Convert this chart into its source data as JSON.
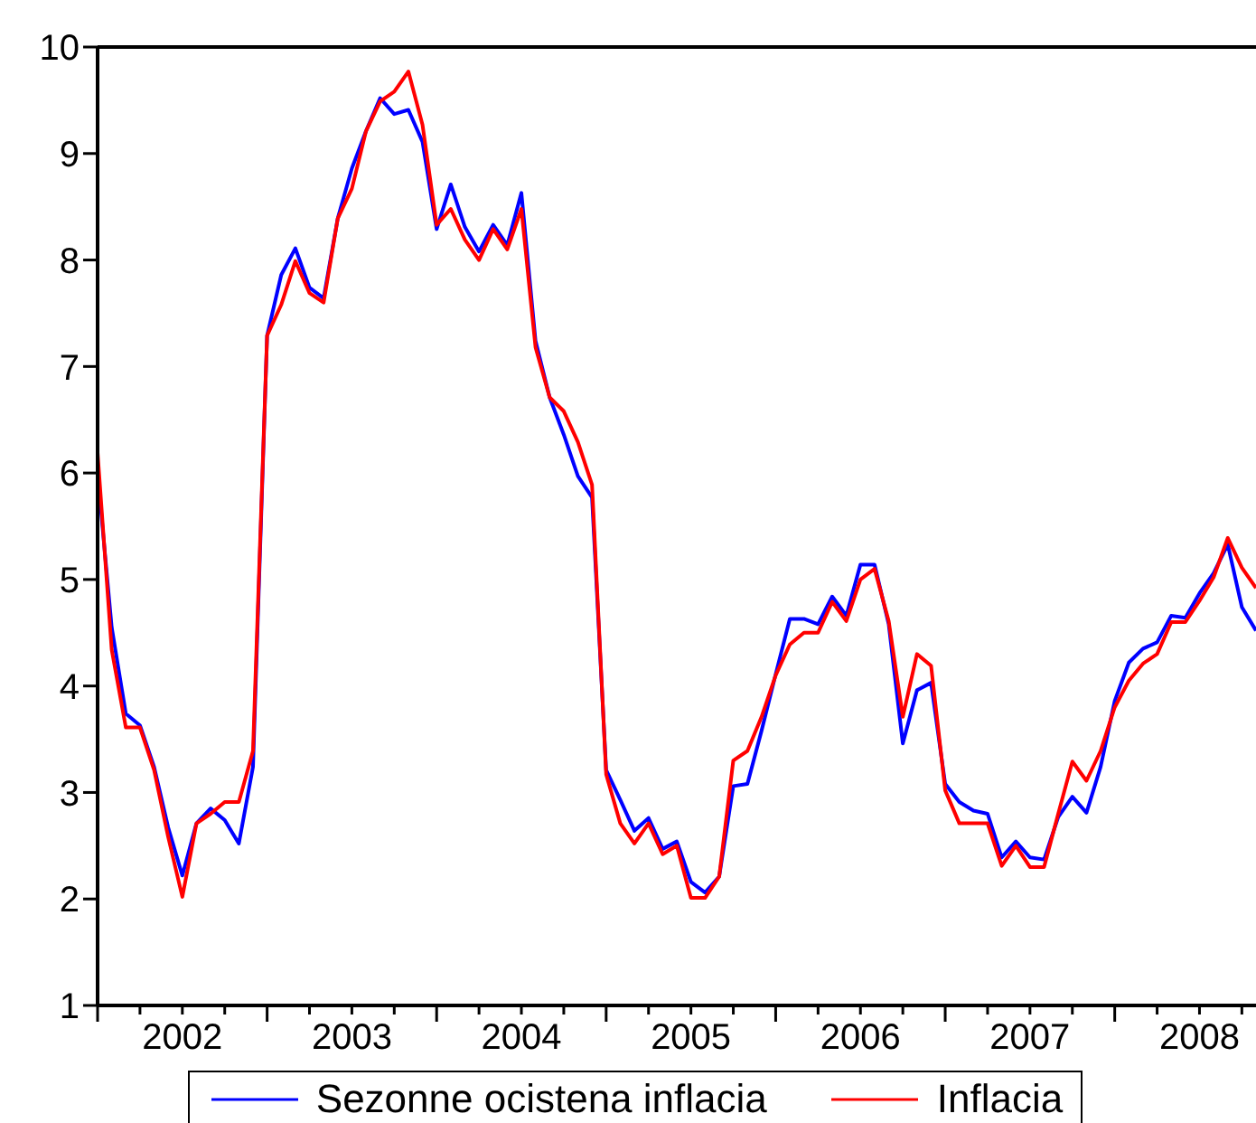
{
  "chart_data": {
    "type": "line",
    "x": [
      "2002-01",
      "2002-02",
      "2002-03",
      "2002-04",
      "2002-05",
      "2002-06",
      "2002-07",
      "2002-08",
      "2002-09",
      "2002-10",
      "2002-11",
      "2002-12",
      "2003-01",
      "2003-02",
      "2003-03",
      "2003-04",
      "2003-05",
      "2003-06",
      "2003-07",
      "2003-08",
      "2003-09",
      "2003-10",
      "2003-11",
      "2003-12",
      "2004-01",
      "2004-02",
      "2004-03",
      "2004-04",
      "2004-05",
      "2004-06",
      "2004-07",
      "2004-08",
      "2004-09",
      "2004-10",
      "2004-11",
      "2004-12",
      "2005-01",
      "2005-02",
      "2005-03",
      "2005-04",
      "2005-05",
      "2005-06",
      "2005-07",
      "2005-08",
      "2005-09",
      "2005-10",
      "2005-11",
      "2005-12",
      "2006-01",
      "2006-02",
      "2006-03",
      "2006-04",
      "2006-05",
      "2006-06",
      "2006-07",
      "2006-08",
      "2006-09",
      "2006-10",
      "2006-11",
      "2006-12",
      "2007-01",
      "2007-02",
      "2007-03",
      "2007-04",
      "2007-05",
      "2007-06",
      "2007-07",
      "2007-08",
      "2007-09",
      "2007-10",
      "2007-11",
      "2007-12",
      "2008-01",
      "2008-02",
      "2008-03",
      "2008-04",
      "2008-05",
      "2008-06",
      "2008-07",
      "2008-08",
      "2008-09",
      "2008-10",
      "2008-11"
    ],
    "series": [
      {
        "name": "Sezonne ocistena inflacia",
        "color": "#0000ff",
        "values": [
          6.0,
          4.55,
          3.74,
          3.63,
          3.24,
          2.67,
          2.22,
          2.71,
          2.85,
          2.74,
          2.52,
          3.24,
          7.29,
          7.86,
          8.11,
          7.74,
          7.64,
          8.39,
          8.86,
          9.21,
          9.52,
          9.37,
          9.41,
          9.11,
          8.29,
          8.71,
          8.31,
          8.08,
          8.33,
          8.14,
          8.63,
          7.24,
          6.71,
          6.36,
          5.97,
          5.77,
          3.21,
          2.93,
          2.64,
          2.76,
          2.47,
          2.54,
          2.16,
          2.06,
          2.21,
          3.06,
          3.08,
          3.58,
          4.11,
          4.63,
          4.63,
          4.58,
          4.84,
          4.66,
          5.14,
          5.14,
          4.58,
          3.46,
          3.96,
          4.03,
          3.08,
          2.91,
          2.83,
          2.8,
          2.39,
          2.54,
          2.39,
          2.37,
          2.77,
          2.96,
          2.81,
          3.24,
          3.86,
          4.22,
          4.35,
          4.41,
          4.66,
          4.64,
          4.87,
          5.06,
          5.33,
          4.74,
          4.52
        ]
      },
      {
        "name": "Inflacia",
        "color": "#ff0000",
        "values": [
          6.19,
          4.34,
          3.61,
          3.61,
          3.21,
          2.58,
          2.02,
          2.71,
          2.8,
          2.91,
          2.91,
          3.39,
          7.29,
          7.58,
          7.99,
          7.69,
          7.6,
          8.39,
          8.67,
          9.21,
          9.49,
          9.58,
          9.77,
          9.27,
          8.33,
          8.48,
          8.19,
          8.0,
          8.29,
          8.1,
          8.48,
          7.18,
          6.71,
          6.58,
          6.29,
          5.89,
          3.17,
          2.71,
          2.52,
          2.71,
          2.42,
          2.5,
          2.01,
          2.01,
          2.21,
          3.3,
          3.39,
          3.71,
          4.1,
          4.39,
          4.5,
          4.5,
          4.79,
          4.61,
          5.0,
          5.1,
          4.61,
          3.71,
          4.3,
          4.19,
          3.02,
          2.71,
          2.71,
          2.71,
          2.31,
          2.5,
          2.3,
          2.3,
          2.8,
          3.29,
          3.11,
          3.39,
          3.8,
          4.05,
          4.21,
          4.3,
          4.6,
          4.6,
          4.8,
          5.02,
          5.39,
          5.11,
          4.92
        ]
      }
    ],
    "xlim": [
      "2002-01",
      "2008-11"
    ],
    "xticks": [
      {
        "value": "2002-01",
        "label": null
      },
      {
        "value": "2002-04",
        "label": null
      },
      {
        "value": "2002-07",
        "label": "2002"
      },
      {
        "value": "2002-10",
        "label": null
      },
      {
        "value": "2003-01",
        "label": null
      },
      {
        "value": "2003-04",
        "label": null
      },
      {
        "value": "2003-07",
        "label": "2003"
      },
      {
        "value": "2003-10",
        "label": null
      },
      {
        "value": "2004-01",
        "label": null
      },
      {
        "value": "2004-04",
        "label": null
      },
      {
        "value": "2004-07",
        "label": "2004"
      },
      {
        "value": "2004-10",
        "label": null
      },
      {
        "value": "2005-01",
        "label": null
      },
      {
        "value": "2005-04",
        "label": null
      },
      {
        "value": "2005-07",
        "label": "2005"
      },
      {
        "value": "2005-10",
        "label": null
      },
      {
        "value": "2006-01",
        "label": null
      },
      {
        "value": "2006-04",
        "label": null
      },
      {
        "value": "2006-07",
        "label": "2006"
      },
      {
        "value": "2006-10",
        "label": null
      },
      {
        "value": "2007-01",
        "label": null
      },
      {
        "value": "2007-04",
        "label": null
      },
      {
        "value": "2007-07",
        "label": "2007"
      },
      {
        "value": "2007-10",
        "label": null
      },
      {
        "value": "2008-01",
        "label": null
      },
      {
        "value": "2008-04",
        "label": null
      },
      {
        "value": "2008-07",
        "label": "2008"
      },
      {
        "value": "2008-10",
        "label": null
      }
    ],
    "ylim": [
      1,
      10
    ],
    "yticks": [
      1,
      2,
      3,
      4,
      5,
      6,
      7,
      8,
      9,
      10
    ],
    "grid": false,
    "legend": "bottom",
    "marker": "none",
    "line_style": "solid"
  }
}
